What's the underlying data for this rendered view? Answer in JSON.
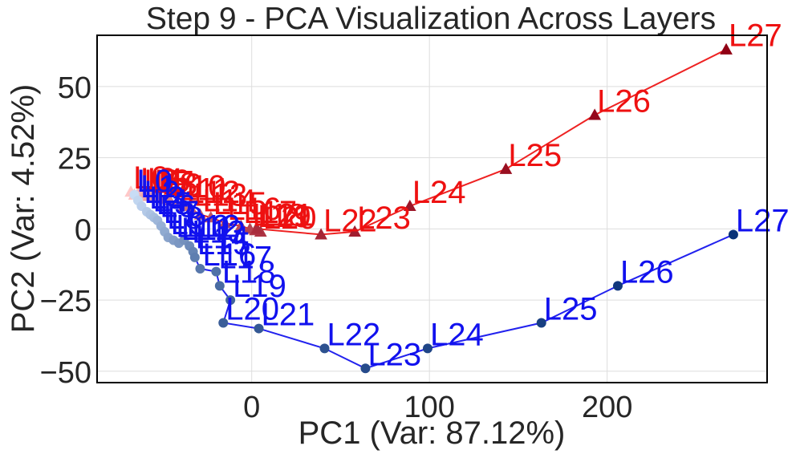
{
  "chart_data": {
    "type": "scatter",
    "title": "Step 9 - PCA Visualization Across Layers",
    "xlabel": "PC1 (Var: 87.12%)",
    "ylabel": "PC2 (Var: 4.52%)",
    "xlim": [
      -87,
      290
    ],
    "ylim": [
      -54,
      68
    ],
    "xticks": [
      0,
      100,
      200
    ],
    "xtick_labels": [
      "0",
      "100",
      "200"
    ],
    "yticks": [
      -50,
      -25,
      0,
      25,
      50
    ],
    "ytick_labels": [
      "−50",
      "−25",
      "0",
      "25",
      "50"
    ],
    "grid": true,
    "series": [
      {
        "name": "red",
        "color": "#ee1111",
        "marker": "triangle",
        "line_color": "#ee2222",
        "points": [
          {
            "label": "L0",
            "x": -68,
            "y": 13
          },
          {
            "label": "L1",
            "x": -66,
            "y": 12
          },
          {
            "label": "L2",
            "x": -64,
            "y": 12.5
          },
          {
            "label": "L3",
            "x": -62,
            "y": 12
          },
          {
            "label": "L4",
            "x": -60,
            "y": 12.5
          },
          {
            "label": "L5",
            "x": -58,
            "y": 11.5
          },
          {
            "label": "L6",
            "x": -56,
            "y": 12
          },
          {
            "label": "L7",
            "x": -54,
            "y": 11.5
          },
          {
            "label": "L8",
            "x": -52,
            "y": 11
          },
          {
            "label": "L9",
            "x": -49,
            "y": 10.5
          },
          {
            "label": "L10",
            "x": -46,
            "y": 10
          },
          {
            "label": "L11",
            "x": -42,
            "y": 9
          },
          {
            "label": "L12",
            "x": -38,
            "y": 8
          },
          {
            "label": "L13",
            "x": -34,
            "y": 7
          },
          {
            "label": "L14",
            "x": -29,
            "y": 5
          },
          {
            "label": "L15",
            "x": -23,
            "y": 4
          },
          {
            "label": "L16",
            "x": -15,
            "y": 2
          },
          {
            "label": "L17",
            "x": -6,
            "y": 1
          },
          {
            "label": "L18",
            "x": -1,
            "y": 0
          },
          {
            "label": "L19",
            "x": 2,
            "y": -0.5
          },
          {
            "label": "L20",
            "x": 5,
            "y": -1
          },
          {
            "label": "L21",
            "x": 3,
            "y": 0
          },
          {
            "label": "L22",
            "x": 39,
            "y": -2
          },
          {
            "label": "L23",
            "x": 58,
            "y": -1
          },
          {
            "label": "L24",
            "x": 89,
            "y": 8
          },
          {
            "label": "L25",
            "x": 143,
            "y": 21
          },
          {
            "label": "L26",
            "x": 193,
            "y": 40
          },
          {
            "label": "L27",
            "x": 267,
            "y": 63
          }
        ]
      },
      {
        "name": "blue",
        "color": "#1111ee",
        "marker": "circle",
        "line_color": "#2222ee",
        "points": [
          {
            "label": "L0",
            "x": -66,
            "y": 12
          },
          {
            "label": "L1",
            "x": -64,
            "y": 10
          },
          {
            "label": "L2",
            "x": -62,
            "y": 8
          },
          {
            "label": "L3",
            "x": -59,
            "y": 6
          },
          {
            "label": "L4",
            "x": -57,
            "y": 5
          },
          {
            "label": "L5",
            "x": -55,
            "y": 4
          },
          {
            "label": "L6",
            "x": -53,
            "y": 3
          },
          {
            "label": "L7",
            "x": -51,
            "y": 1
          },
          {
            "label": "L8",
            "x": -49,
            "y": -1
          },
          {
            "label": "L9",
            "x": -47,
            "y": -3
          },
          {
            "label": "L10",
            "x": -44,
            "y": -4
          },
          {
            "label": "L11",
            "x": -41,
            "y": -5
          },
          {
            "label": "L12",
            "x": -38,
            "y": -4
          },
          {
            "label": "L13",
            "x": -35,
            "y": -6
          },
          {
            "label": "L14",
            "x": -33,
            "y": -8
          },
          {
            "label": "L15",
            "x": -32,
            "y": -10
          },
          {
            "label": "L16",
            "x": -29,
            "y": -14
          },
          {
            "label": "L17",
            "x": -20,
            "y": -15
          },
          {
            "label": "L18",
            "x": -18,
            "y": -20
          },
          {
            "label": "L19",
            "x": -12,
            "y": -25
          },
          {
            "label": "L20",
            "x": -16,
            "y": -33
          },
          {
            "label": "L21",
            "x": 4,
            "y": -35
          },
          {
            "label": "L22",
            "x": 41,
            "y": -42
          },
          {
            "label": "L23",
            "x": 64,
            "y": -49
          },
          {
            "label": "L24",
            "x": 99,
            "y": -42
          },
          {
            "label": "L25",
            "x": 163,
            "y": -33
          },
          {
            "label": "L26",
            "x": 206,
            "y": -20
          },
          {
            "label": "L27",
            "x": 271,
            "y": -2
          }
        ]
      }
    ]
  }
}
